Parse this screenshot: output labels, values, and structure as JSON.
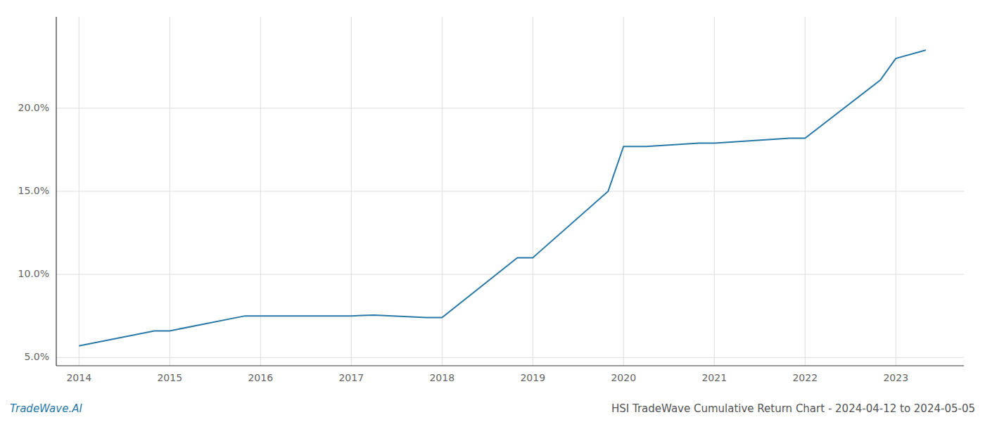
{
  "chart_data": {
    "type": "line",
    "title": "HSI TradeWave Cumulative Return Chart - 2024-04-12 to 2024-05-05",
    "annotations": [
      "TradeWave.AI"
    ],
    "x": [
      2014.0,
      2014.83,
      2015.0,
      2015.83,
      2016.0,
      2016.83,
      2017.0,
      2017.25,
      2017.83,
      2018.0,
      2018.83,
      2019.0,
      2019.83,
      2020.0,
      2020.25,
      2020.83,
      2021.0,
      2021.83,
      2022.0,
      2022.83,
      2023.0,
      2023.33
    ],
    "values": [
      5.7,
      6.6,
      6.6,
      7.5,
      7.5,
      7.5,
      7.5,
      7.55,
      7.4,
      7.4,
      11.0,
      11.0,
      15.0,
      17.7,
      17.7,
      17.9,
      17.9,
      18.2,
      18.2,
      21.7,
      23.0,
      23.5
    ],
    "color": "#2979a8",
    "xlim": [
      2013.75,
      2023.75
    ],
    "xticks": [
      2014,
      2015,
      2016,
      2017,
      2018,
      2019,
      2020,
      2021,
      2022,
      2023
    ],
    "ylim": [
      4.5,
      25.5
    ],
    "yticks": [
      {
        "value": 5.0,
        "label": "5.0%"
      },
      {
        "value": 10.0,
        "label": "10.0%"
      },
      {
        "value": 15.0,
        "label": "15.0%"
      },
      {
        "value": 20.0,
        "label": "20.0%"
      }
    ],
    "grid": true
  }
}
